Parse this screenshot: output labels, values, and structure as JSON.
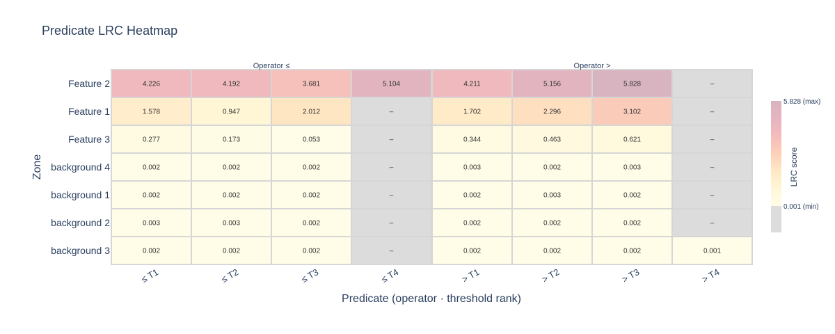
{
  "chart_data": {
    "type": "heatmap",
    "title": "Predicate LRC Heatmap",
    "xlabel": "Predicate (operator · threshold rank)",
    "ylabel": "Zone",
    "groups": [
      "Operator ≤",
      "Operator >"
    ],
    "categories": [
      "≤ T1",
      "≤ T2",
      "≤ T3",
      "≤ T4",
      "> T1",
      "> T2",
      "> T3",
      "> T4"
    ],
    "rows": [
      "Feature 2",
      "Feature 1",
      "Feature 3",
      "background 4",
      "background 1",
      "background 2",
      "background 3"
    ],
    "values": [
      [
        4.226,
        4.192,
        3.681,
        5.104,
        4.211,
        5.156,
        5.828,
        null
      ],
      [
        1.578,
        0.947,
        2.012,
        null,
        1.702,
        2.296,
        3.102,
        null
      ],
      [
        0.277,
        0.173,
        0.053,
        null,
        0.344,
        0.463,
        0.621,
        null
      ],
      [
        0.002,
        0.002,
        0.002,
        null,
        0.003,
        0.002,
        0.003,
        null
      ],
      [
        0.002,
        0.002,
        0.002,
        null,
        0.002,
        0.003,
        0.002,
        null
      ],
      [
        0.003,
        0.003,
        0.002,
        null,
        0.002,
        0.002,
        0.002,
        null
      ],
      [
        0.002,
        0.002,
        0.002,
        null,
        0.002,
        0.002,
        0.002,
        0.001
      ]
    ],
    "labels": [
      [
        "4.226",
        "4.192",
        "3.681",
        "5.104",
        "4.211",
        "5.156",
        "5.828",
        "–"
      ],
      [
        "1.578",
        "0.947",
        "2.012",
        "–",
        "1.702",
        "2.296",
        "3.102",
        "–"
      ],
      [
        "0.277",
        "0.173",
        "0.053",
        "–",
        "0.344",
        "0.463",
        "0.621",
        "–"
      ],
      [
        "0.002",
        "0.002",
        "0.002",
        "–",
        "0.003",
        "0.002",
        "0.003",
        "–"
      ],
      [
        "0.002",
        "0.002",
        "0.002",
        "–",
        "0.002",
        "0.003",
        "0.002",
        "–"
      ],
      [
        "0.003",
        "0.003",
        "0.002",
        "–",
        "0.002",
        "0.002",
        "0.002",
        "–"
      ],
      [
        "0.002",
        "0.002",
        "0.002",
        "–",
        "0.002",
        "0.002",
        "0.002",
        "0.001"
      ]
    ],
    "colorbar": {
      "title": "LRC score",
      "max_label": "5.828 (max)",
      "min_label": "0.001 (min)",
      "range": [
        0.001,
        5.828
      ]
    },
    "colors": {
      "scale": [
        "#fffde8",
        "#fff6d6",
        "#ffe8c4",
        "#fdcfb8",
        "#f4bcbc",
        "#e6b4c0",
        "#d8b4c0"
      ],
      "missing": "#dcdcdc",
      "title": "#2a3f5f",
      "axis_text": "#2a3f5f",
      "cell_text": "#333333",
      "grid": "#d6d6d6"
    }
  }
}
